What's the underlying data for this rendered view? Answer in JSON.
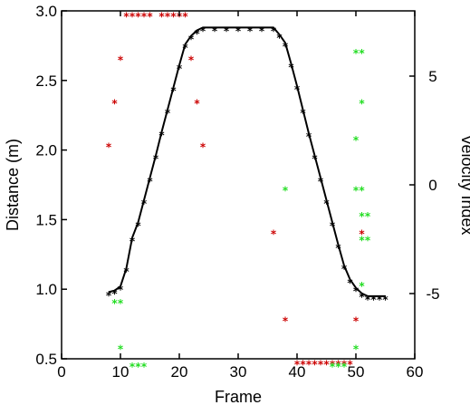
{
  "chart_data": {
    "type": "scatter",
    "xlabel": "Frame",
    "ylabel": "Distance (m)",
    "y2label": "Velocity Index",
    "xlim": [
      0,
      60
    ],
    "ylim": [
      0.5,
      3.0
    ],
    "y2lim": [
      -8,
      8
    ],
    "x_ticks": [
      "0",
      "10",
      "20",
      "30",
      "40",
      "50",
      "60"
    ],
    "y_ticks": [
      "0.5",
      "1.0",
      "1.5",
      "2.0",
      "2.5",
      "3.0"
    ],
    "y2_ticks": [
      "-5",
      "0",
      "5"
    ],
    "marker": "*",
    "grid": false,
    "series": [
      {
        "axis": "left",
        "color": "#000000",
        "style": "line-with-markers",
        "x": [
          8,
          9,
          10,
          11,
          12,
          13,
          14,
          15,
          16,
          17,
          18,
          19,
          20,
          21,
          22,
          23,
          24,
          26,
          28,
          30,
          32,
          34,
          36,
          37,
          38,
          39,
          40,
          41,
          42,
          43,
          44,
          45,
          46,
          47,
          48,
          49,
          50,
          51,
          52,
          53,
          54,
          55
        ],
        "y": [
          0.98,
          0.99,
          1.02,
          1.15,
          1.37,
          1.48,
          1.64,
          1.8,
          1.96,
          2.13,
          2.29,
          2.45,
          2.61,
          2.76,
          2.82,
          2.86,
          2.88,
          2.88,
          2.88,
          2.88,
          2.88,
          2.88,
          2.88,
          2.83,
          2.77,
          2.62,
          2.46,
          2.29,
          2.12,
          1.96,
          1.8,
          1.64,
          1.48,
          1.32,
          1.17,
          1.07,
          1.01,
          0.97,
          0.95,
          0.95,
          0.95,
          0.95
        ]
      },
      {
        "axis": "right",
        "color": "#cc0000",
        "style": "markers",
        "x": [
          8,
          9,
          10,
          11,
          12,
          13,
          14,
          15,
          17,
          18,
          19,
          20,
          21,
          22,
          23,
          24,
          36,
          38,
          40,
          41,
          42,
          43,
          44,
          45,
          46,
          47,
          48,
          49,
          50,
          51
        ],
        "y": [
          1.9,
          3.9,
          5.9,
          7.9,
          7.9,
          7.9,
          7.9,
          7.9,
          7.9,
          7.9,
          7.9,
          7.9,
          7.9,
          5.9,
          3.9,
          1.9,
          -2.1,
          -6.1,
          -8.1,
          -8.1,
          -8.1,
          -8.1,
          -8.1,
          -8.1,
          -8.1,
          -8.1,
          -8.1,
          -8.1,
          -6.1,
          -2.1
        ]
      },
      {
        "axis": "right",
        "color": "#22dd22",
        "style": "markers",
        "x": [
          9,
          10,
          10,
          12,
          13,
          14,
          38,
          46,
          47,
          48,
          50,
          50,
          51,
          51,
          50,
          51,
          51,
          52,
          51,
          52,
          51,
          50
        ],
        "y": [
          -5.3,
          -5.3,
          -7.4,
          -8.2,
          -8.2,
          -8.2,
          -0.1,
          -8.2,
          -8.2,
          -8.2,
          -7.4,
          -0.1,
          -0.1,
          -1.3,
          6.2,
          6.2,
          3.9,
          -1.3,
          -2.4,
          -2.4,
          -4.5,
          2.2
        ]
      }
    ]
  }
}
